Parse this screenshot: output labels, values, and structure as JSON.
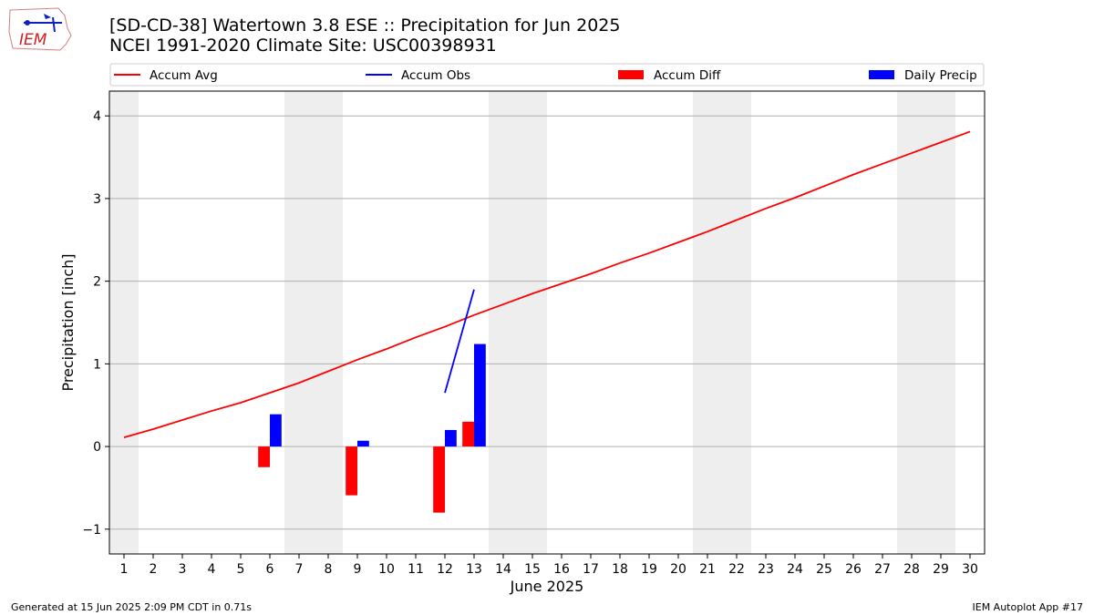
{
  "title_line1": "[SD-CD-38] Watertown 3.8 ESE :: Precipitation for Jun 2025",
  "title_line2": "NCEI 1991-2020 Climate Site: USC00398931",
  "logo_text": "IEM",
  "footer_left": "Generated at 15 Jun 2025 2:09 PM CDT in 0.71s",
  "footer_right": "IEM Autoplot App #17",
  "colors": {
    "avg": "#ff0000",
    "obs": "#0000ff",
    "diff": "#ff0000",
    "daily": "#0000ff",
    "weekend": "#eeeeee",
    "grid": "#b0b0b0"
  },
  "chart_data": {
    "type": "bar",
    "xlabel": "June 2025",
    "ylabel": "Precipitation [inch]",
    "xlim": [
      0.5,
      30.5
    ],
    "ylim": [
      -1.3,
      4.3
    ],
    "xticks": [
      "1",
      "2",
      "3",
      "4",
      "5",
      "6",
      "7",
      "8",
      "9",
      "10",
      "11",
      "12",
      "13",
      "14",
      "15",
      "16",
      "17",
      "18",
      "19",
      "20",
      "21",
      "22",
      "23",
      "24",
      "25",
      "26",
      "27",
      "28",
      "29",
      "30"
    ],
    "yticks": [
      -1,
      0,
      1,
      2,
      3,
      4
    ],
    "ytick_labels": [
      "−1",
      "0",
      "1",
      "2",
      "3",
      "4"
    ],
    "grid": "y",
    "legend_position": "top",
    "weekend_bands": [
      [
        0.5,
        1.5
      ],
      [
        6.5,
        8.5
      ],
      [
        13.5,
        15.5
      ],
      [
        20.5,
        22.5
      ],
      [
        27.5,
        29.5
      ]
    ],
    "series": [
      {
        "name": "Accum Avg",
        "type": "line",
        "x": [
          1,
          2,
          3,
          4,
          5,
          6,
          7,
          8,
          9,
          10,
          11,
          12,
          13,
          14,
          15,
          16,
          17,
          18,
          19,
          20,
          21,
          22,
          23,
          24,
          25,
          26,
          27,
          28,
          29,
          30
        ],
        "values": [
          0.11,
          0.21,
          0.32,
          0.43,
          0.53,
          0.65,
          0.77,
          0.91,
          1.05,
          1.18,
          1.32,
          1.45,
          1.59,
          1.72,
          1.85,
          1.97,
          2.09,
          2.22,
          2.34,
          2.47,
          2.6,
          2.74,
          2.88,
          3.01,
          3.15,
          3.29,
          3.42,
          3.55,
          3.68,
          3.81
        ]
      },
      {
        "name": "Accum Obs",
        "type": "line",
        "x": [
          12,
          13
        ],
        "values": [
          0.65,
          1.9
        ]
      },
      {
        "name": "Accum Diff",
        "type": "bar",
        "x": [
          6,
          9,
          12,
          13
        ],
        "values": [
          -0.25,
          -0.59,
          -0.8,
          0.3
        ]
      },
      {
        "name": "Daily Precip",
        "type": "bar",
        "x": [
          6,
          9,
          12,
          13
        ],
        "values": [
          0.39,
          0.07,
          0.2,
          1.24
        ]
      }
    ]
  }
}
